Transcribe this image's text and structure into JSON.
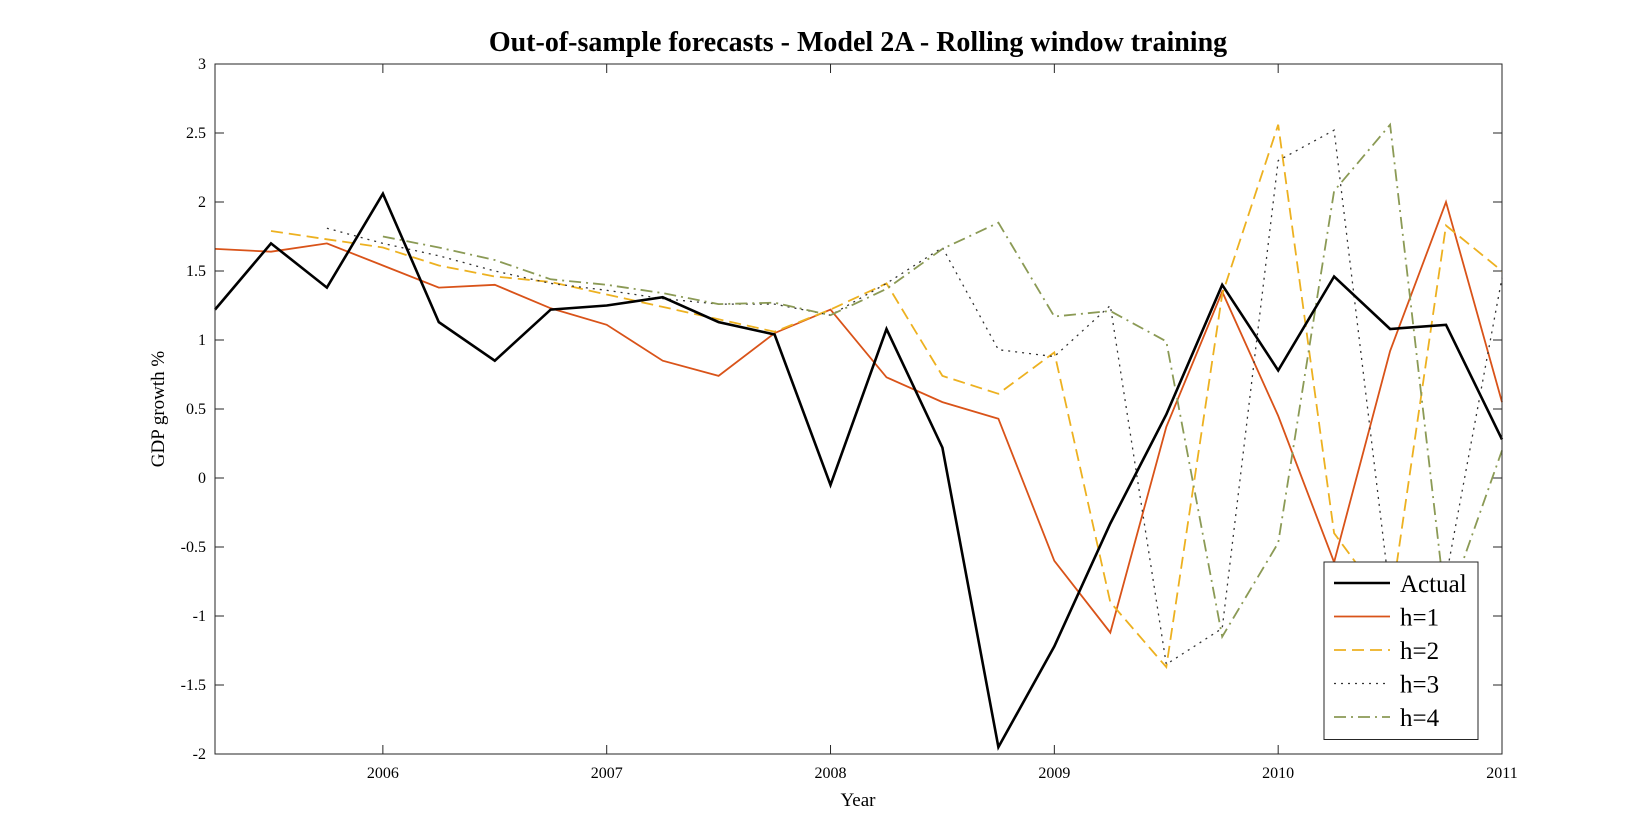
{
  "chart_data": {
    "type": "line",
    "title": "Out-of-sample forecasts - Model 2A - Rolling window training",
    "xlabel": "Year",
    "ylabel": "GDP growth %",
    "xlim": [
      2005.25,
      2011.0
    ],
    "ylim": [
      -2,
      3
    ],
    "xticks": [
      2006,
      2007,
      2008,
      2009,
      2010,
      2011
    ],
    "xtick_labels": [
      "2006",
      "2007",
      "2008",
      "2009",
      "2010",
      "2011"
    ],
    "yticks": [
      -2,
      -1.5,
      -1,
      -0.5,
      0,
      0.5,
      1,
      1.5,
      2,
      2.5,
      3
    ],
    "ytick_labels": [
      "-2",
      "-1.5",
      "-1",
      "-0.5",
      "0",
      "0.5",
      "1",
      "1.5",
      "2",
      "2.5",
      "3"
    ],
    "grid": false,
    "legend_position": "bottom-right",
    "series": [
      {
        "name": "Actual",
        "color": "#000000",
        "dash": "solid",
        "x": [
          2005.25,
          2005.5,
          2005.75,
          2006.0,
          2006.25,
          2006.5,
          2006.75,
          2007.0,
          2007.25,
          2007.5,
          2007.75,
          2008.0,
          2008.25,
          2008.5,
          2008.75,
          2009.0,
          2009.25,
          2009.5,
          2009.75,
          2010.0,
          2010.25,
          2010.5,
          2010.75,
          2011.0
        ],
        "y": [
          1.22,
          1.7,
          1.38,
          2.06,
          1.13,
          0.85,
          1.22,
          1.25,
          1.31,
          1.13,
          1.04,
          -0.05,
          1.08,
          0.22,
          -1.95,
          -1.22,
          -0.33,
          0.46,
          1.4,
          0.78,
          1.46,
          1.08,
          1.11,
          0.28
        ]
      },
      {
        "name": "h=1",
        "color": "#d95319",
        "dash": "solid",
        "x": [
          2005.25,
          2005.5,
          2005.75,
          2006.0,
          2006.25,
          2006.5,
          2006.75,
          2007.0,
          2007.25,
          2007.5,
          2007.75,
          2008.0,
          2008.25,
          2008.5,
          2008.75,
          2009.0,
          2009.25,
          2009.5,
          2009.75,
          2010.0,
          2010.25,
          2010.5,
          2010.75,
          2011.0
        ],
        "y": [
          1.66,
          1.64,
          1.7,
          1.54,
          1.38,
          1.4,
          1.23,
          1.11,
          0.85,
          0.74,
          1.05,
          1.22,
          0.73,
          0.55,
          0.43,
          -0.6,
          -1.12,
          0.37,
          1.35,
          0.45,
          -0.61,
          0.92,
          2.0,
          0.55
        ]
      },
      {
        "name": "h=2",
        "color": "#edb120",
        "dash": "dashed",
        "x": [
          2005.5,
          2005.75,
          2006.0,
          2006.25,
          2006.5,
          2006.75,
          2007.0,
          2007.25,
          2007.5,
          2007.75,
          2008.0,
          2008.25,
          2008.5,
          2008.75,
          2009.0,
          2009.25,
          2009.5,
          2009.75,
          2010.0,
          2010.25,
          2010.5,
          2010.75,
          2011.0
        ],
        "y": [
          1.79,
          1.73,
          1.67,
          1.54,
          1.46,
          1.42,
          1.33,
          1.24,
          1.15,
          1.06,
          1.22,
          1.41,
          0.74,
          0.61,
          0.91,
          -0.9,
          -1.37,
          1.33,
          2.56,
          -0.4,
          -0.95,
          1.83,
          1.5
        ]
      },
      {
        "name": "h=3",
        "color": "#333333",
        "dash": "dotted",
        "x": [
          2005.75,
          2006.0,
          2006.25,
          2006.5,
          2006.75,
          2007.0,
          2007.25,
          2007.5,
          2007.75,
          2008.0,
          2008.25,
          2008.5,
          2008.75,
          2009.0,
          2009.25,
          2009.5,
          2009.75,
          2010.0,
          2010.25,
          2010.5,
          2010.75,
          2011.0
        ],
        "y": [
          1.81,
          1.7,
          1.61,
          1.5,
          1.41,
          1.36,
          1.3,
          1.26,
          1.26,
          1.18,
          1.41,
          1.67,
          0.93,
          0.88,
          1.25,
          -1.35,
          -1.09,
          2.3,
          2.52,
          -0.85,
          -0.72,
          1.45
        ]
      },
      {
        "name": "h=4",
        "color": "#8b9a55",
        "dash": "dashdot",
        "x": [
          2006.0,
          2006.25,
          2006.5,
          2006.75,
          2007.0,
          2007.25,
          2007.5,
          2007.75,
          2008.0,
          2008.25,
          2008.5,
          2008.75,
          2009.0,
          2009.25,
          2009.5,
          2009.75,
          2010.0,
          2010.25,
          2010.5,
          2010.75,
          2011.0
        ],
        "y": [
          1.75,
          1.67,
          1.58,
          1.44,
          1.4,
          1.34,
          1.26,
          1.27,
          1.18,
          1.37,
          1.66,
          1.85,
          1.17,
          1.21,
          0.99,
          -1.15,
          -0.47,
          2.08,
          2.56,
          -0.95,
          0.2
        ]
      }
    ]
  }
}
